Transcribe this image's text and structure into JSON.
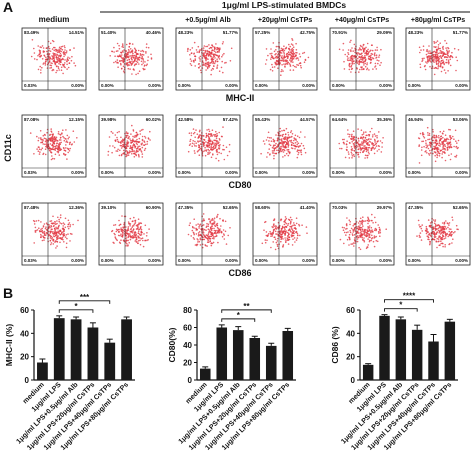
{
  "flow_panel": {
    "label": "A",
    "group_label": "1μg/ml LPS-stimulated BMDCs",
    "headers": [
      "medium",
      null,
      "+0.5μg/ml Alb",
      "+20μg/ml CsTPs",
      "+40μg/ml CsTPs",
      "+80μg/ml CsTPs"
    ],
    "y_label": "CD11c",
    "rows": [
      {
        "marker": "MHC-II",
        "quadrants": [
          [
            "83.49%",
            "14.51%",
            "0.03%",
            "0.00%"
          ],
          [
            "51.40%",
            "40.46%",
            "0.00%",
            "0.00%"
          ],
          [
            "48.23%",
            "51.77%",
            "0.00%",
            "0.00%"
          ],
          [
            "57.25%",
            "42.75%",
            "0.00%",
            "0.00%"
          ],
          [
            "70.91%",
            "29.09%",
            "0.00%",
            "0.00%"
          ],
          [
            "48.23%",
            "51.77%",
            "0.00%",
            "0.00%"
          ]
        ]
      },
      {
        "marker": "CD80",
        "quadrants": [
          [
            "87.08%",
            "12.15%",
            "0.03%",
            "0.00%"
          ],
          [
            "39.98%",
            "60.02%",
            "0.00%",
            "0.00%"
          ],
          [
            "42.58%",
            "57.42%",
            "0.00%",
            "0.00%"
          ],
          [
            "55.43%",
            "44.57%",
            "0.00%",
            "0.00%"
          ],
          [
            "64.64%",
            "35.36%",
            "0.00%",
            "0.00%"
          ],
          [
            "46.94%",
            "53.06%",
            "0.00%",
            "0.00%"
          ]
        ]
      },
      {
        "marker": "CD86",
        "quadrants": [
          [
            "87.48%",
            "12.36%",
            "0.03%",
            "0.00%"
          ],
          [
            "39.10%",
            "60.90%",
            "0.00%",
            "0.00%"
          ],
          [
            "47.35%",
            "52.65%",
            "0.00%",
            "0.00%"
          ],
          [
            "58.60%",
            "41.40%",
            "0.00%",
            "0.00%"
          ],
          [
            "70.03%",
            "29.97%",
            "0.00%",
            "0.00%"
          ],
          [
            "47.35%",
            "52.65%",
            "0.00%",
            "0.00%"
          ]
        ]
      }
    ]
  },
  "panel_b_label": "B",
  "chart_data": [
    {
      "type": "bar",
      "ylabel": "MHC-II (%)",
      "color": "#1a1a1a",
      "categories": [
        "medium",
        "1μg/ml LPS",
        "1μg/ml LPS+0.5μg/ml Alb",
        "1μg/ml LPS+20μg/ml CsTPs",
        "1μg/ml LPS+40μg/ml CsTPs",
        "1μg/ml LPS+80μg/ml CsTPs"
      ],
      "values": [
        15,
        53,
        52,
        45,
        32,
        52
      ],
      "errors": [
        3,
        2,
        2,
        4,
        3,
        2
      ],
      "ylim": [
        0,
        60
      ],
      "yticks": [
        0,
        20,
        40,
        60
      ],
      "significance": [
        {
          "from": 1,
          "to": 4,
          "label": "***"
        },
        {
          "from": 1,
          "to": 3,
          "label": "*"
        }
      ]
    },
    {
      "type": "bar",
      "ylabel": "CD80(%)",
      "color": "#1a1a1a",
      "categories": [
        "medium",
        "1μg/ml LPS",
        "1μg/ml LPS+0.5μg/ml Alb",
        "1μg/ml LPS+20μg/ml CsTPs",
        "1μg/ml LPS+40μg/ml CsTPs",
        "1μg/ml LPS+80μg/ml CsTPs"
      ],
      "values": [
        13,
        60,
        57,
        48,
        39,
        56
      ],
      "errors": [
        2,
        3,
        4,
        2,
        3,
        3
      ],
      "ylim": [
        0,
        80
      ],
      "yticks": [
        0,
        20,
        40,
        60,
        80
      ],
      "significance": [
        {
          "from": 1,
          "to": 4,
          "label": "**"
        },
        {
          "from": 1,
          "to": 3,
          "label": "*"
        }
      ]
    },
    {
      "type": "bar",
      "ylabel": "CD86 (%)",
      "color": "#1a1a1a",
      "categories": [
        "medium",
        "1μg/ml LPS",
        "1μg/ml LPS+0.5μg/ml Alb",
        "1μg/ml LPS+20μg/ml CsTPs",
        "1μg/ml LPS+40μg/ml CsTPs",
        "1μg/ml LPS+80μg/ml CsTPs"
      ],
      "values": [
        13,
        55,
        52,
        43,
        33,
        50
      ],
      "errors": [
        1,
        1,
        2,
        4,
        6,
        2
      ],
      "ylim": [
        0,
        60
      ],
      "yticks": [
        0,
        20,
        40,
        60
      ],
      "significance": [
        {
          "from": 1,
          "to": 4,
          "label": "****"
        },
        {
          "from": 1,
          "to": 3,
          "label": "*"
        }
      ]
    }
  ]
}
